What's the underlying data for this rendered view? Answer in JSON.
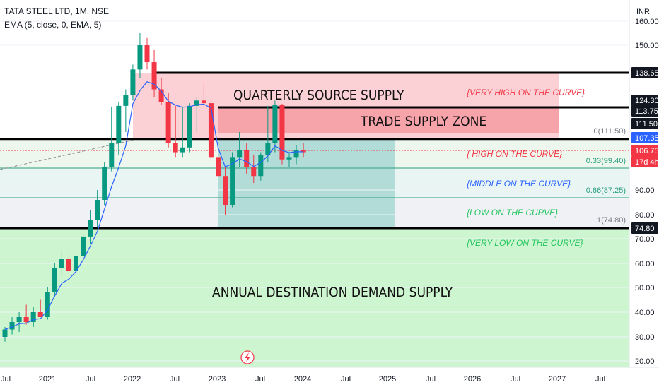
{
  "header": {
    "symbol_line": "TATA STEEL LTD, 1M, NSE",
    "indicator_line": "EMA (5, close, 0, EMA, 5)"
  },
  "chart_data": {
    "type": "candlestick",
    "currency": "INR",
    "y_ticks": [
      "160.00",
      "150.00",
      "90.00",
      "80.00",
      "70.00",
      "60.00",
      "50.00",
      "40.00",
      "30.00",
      "20.00"
    ],
    "x_ticks": [
      "Jul",
      "2021",
      "Jul",
      "2022",
      "Jul",
      "2023",
      "Jul",
      "2024",
      "Jul",
      "2025",
      "Jul",
      "2026",
      "Jul",
      "2027",
      "Jul"
    ],
    "level_labels": [
      {
        "id": "l138",
        "text": "138.65",
        "style": "black"
      },
      {
        "id": "l124",
        "text": "124.30",
        "style": "black"
      },
      {
        "id": "l113",
        "text": "113.75",
        "style": "black"
      },
      {
        "id": "l111",
        "text": "111.50",
        "style": "black"
      },
      {
        "id": "l107",
        "text": "107.35",
        "style": "blue"
      },
      {
        "id": "l106",
        "text": "106.75",
        "style": "red"
      },
      {
        "id": "l17d",
        "text": "17d 4h",
        "style": "red"
      },
      {
        "id": "l74",
        "text": "74.80",
        "style": "black"
      }
    ],
    "fib_labels": {
      "f0": "0(111.50)",
      "f033": "0.33(99.40)",
      "f066": "0.66(87.25)",
      "f1": "1(74.80)"
    },
    "annotations": {
      "quarterly": "QUARTERLY SOURCE SUPPLY",
      "trade": "TRADE SUPPLY ZONE",
      "annual": "ANNUAL DESTINATION DEMAND SUPPLY",
      "very_high": "{VERY HIGH ON THE CURVE}",
      "high": "{ HIGH ON THE CURVE}",
      "middle": "{MIDDLE ON THE CURVE}",
      "low": "{LOW ON THE CURVE}",
      "very_low": "{VERY LOW ON THE CURVE}"
    },
    "colors": {
      "up": "#089981",
      "down": "#f23645",
      "ema": "#2962ff",
      "annot_red": "#f23645",
      "annot_blue": "#2962ff",
      "annot_green": "#22c55e",
      "annual_zone": "#cdf5cf",
      "supply_zone": "#f8a1a7"
    },
    "candles": [
      {
        "o": 30,
        "h": 34,
        "l": 28,
        "c": 33
      },
      {
        "o": 33,
        "h": 38,
        "l": 31,
        "c": 36
      },
      {
        "o": 36,
        "h": 40,
        "l": 32,
        "c": 38
      },
      {
        "o": 38,
        "h": 43,
        "l": 35,
        "c": 36
      },
      {
        "o": 36,
        "h": 42,
        "l": 34,
        "c": 40
      },
      {
        "o": 40,
        "h": 45,
        "l": 38,
        "c": 38
      },
      {
        "o": 38,
        "h": 50,
        "l": 37,
        "c": 48
      },
      {
        "o": 48,
        "h": 60,
        "l": 46,
        "c": 58
      },
      {
        "o": 58,
        "h": 65,
        "l": 55,
        "c": 62
      },
      {
        "o": 62,
        "h": 64,
        "l": 55,
        "c": 57
      },
      {
        "o": 57,
        "h": 64,
        "l": 56,
        "c": 63
      },
      {
        "o": 63,
        "h": 72,
        "l": 61,
        "c": 71
      },
      {
        "o": 71,
        "h": 82,
        "l": 68,
        "c": 78
      },
      {
        "o": 78,
        "h": 90,
        "l": 75,
        "c": 86
      },
      {
        "o": 86,
        "h": 102,
        "l": 84,
        "c": 100
      },
      {
        "o": 100,
        "h": 115,
        "l": 98,
        "c": 110
      },
      {
        "o": 110,
        "h": 122,
        "l": 105,
        "c": 116
      },
      {
        "o": 116,
        "h": 130,
        "l": 112,
        "c": 127
      },
      {
        "o": 127,
        "h": 142,
        "l": 124,
        "c": 140
      },
      {
        "o": 140,
        "h": 155,
        "l": 136,
        "c": 150
      },
      {
        "o": 150,
        "h": 153,
        "l": 140,
        "c": 143
      },
      {
        "o": 143,
        "h": 148,
        "l": 126,
        "c": 130
      },
      {
        "o": 130,
        "h": 136,
        "l": 118,
        "c": 122
      },
      {
        "o": 122,
        "h": 128,
        "l": 108,
        "c": 110
      },
      {
        "o": 110,
        "h": 116,
        "l": 104,
        "c": 106
      },
      {
        "o": 106,
        "h": 114,
        "l": 104,
        "c": 108
      },
      {
        "o": 108,
        "h": 120,
        "l": 106,
        "c": 116
      },
      {
        "o": 116,
        "h": 126,
        "l": 112,
        "c": 124
      },
      {
        "o": 124,
        "h": 133,
        "l": 118,
        "c": 120
      },
      {
        "o": 120,
        "h": 124,
        "l": 102,
        "c": 104
      },
      {
        "o": 104,
        "h": 109,
        "l": 88,
        "c": 96
      },
      {
        "o": 96,
        "h": 100,
        "l": 80,
        "c": 84
      },
      {
        "o": 84,
        "h": 106,
        "l": 83,
        "c": 104
      },
      {
        "o": 104,
        "h": 112,
        "l": 100,
        "c": 107
      },
      {
        "o": 107,
        "h": 110,
        "l": 97,
        "c": 100
      },
      {
        "o": 100,
        "h": 105,
        "l": 93,
        "c": 96
      },
      {
        "o": 96,
        "h": 106,
        "l": 94,
        "c": 105
      },
      {
        "o": 105,
        "h": 116,
        "l": 102,
        "c": 110
      },
      {
        "o": 110,
        "h": 124,
        "l": 106,
        "c": 117
      },
      {
        "o": 117,
        "h": 119,
        "l": 101,
        "c": 103
      },
      {
        "o": 103,
        "h": 106,
        "l": 100,
        "c": 104
      },
      {
        "o": 104,
        "h": 109,
        "l": 101,
        "c": 107
      },
      {
        "o": 107,
        "h": 110,
        "l": 104,
        "c": 106
      }
    ]
  }
}
